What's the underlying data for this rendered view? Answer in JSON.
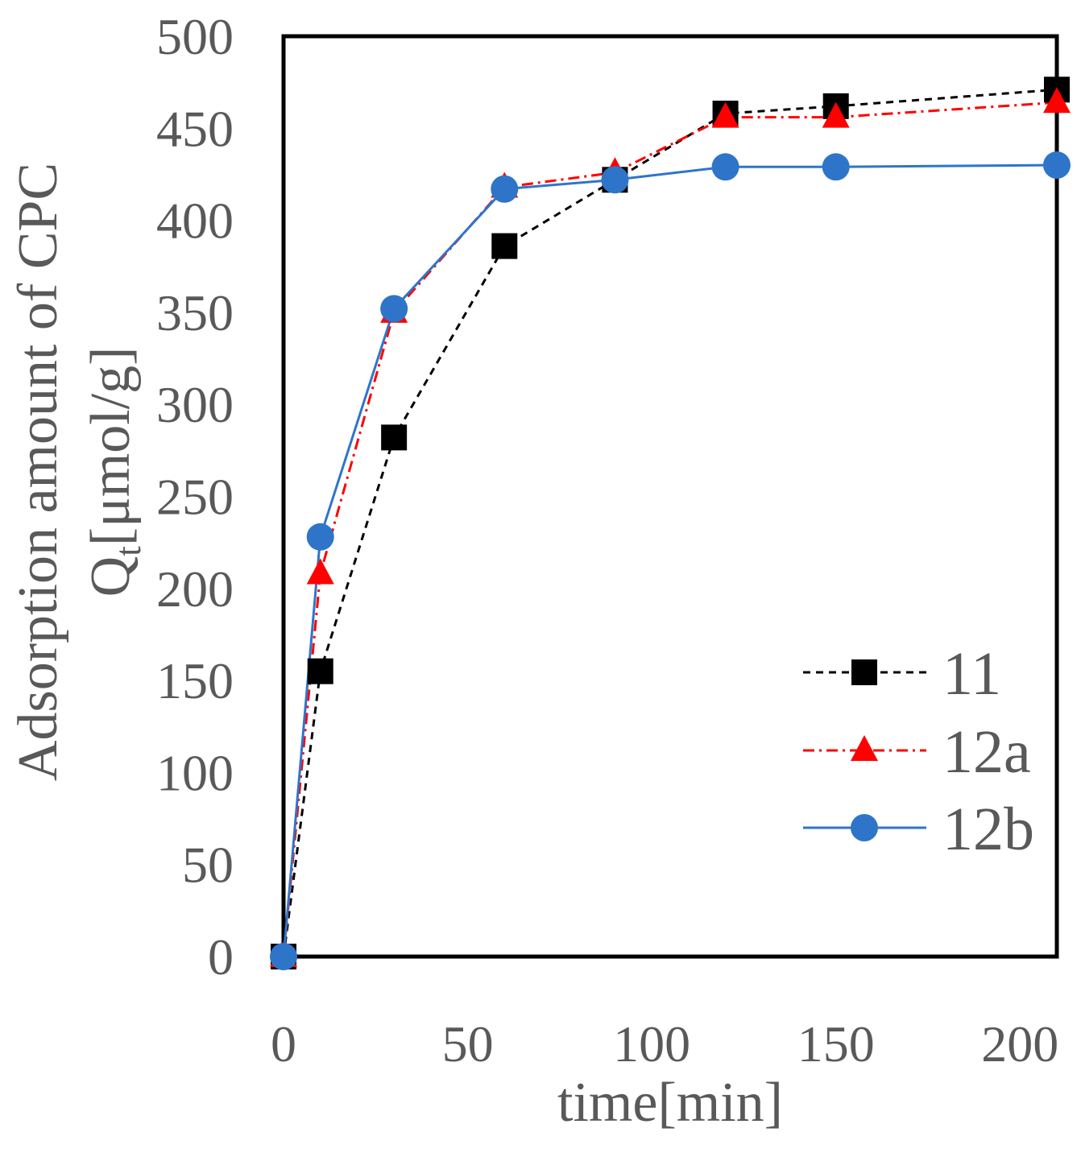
{
  "chart_data": {
    "type": "line",
    "title": "",
    "xlabel": "time[min]",
    "ylabel_line1": "Adsorption amount of CPC",
    "ylabel_q": "Q",
    "ylabel_sub": "t",
    "ylabel_unit": "[μmol/g]",
    "xlim": [
      0,
      210
    ],
    "ylim": [
      0,
      500
    ],
    "xticks": [
      0,
      50,
      100,
      150,
      200
    ],
    "yticks": [
      0,
      50,
      100,
      150,
      200,
      250,
      300,
      350,
      400,
      450,
      500
    ],
    "grid": false,
    "legend_position": "bottom-right",
    "series": [
      {
        "name": "11",
        "marker": "square",
        "line": "dashed",
        "color": "#000000",
        "x": [
          0,
          10,
          30,
          60,
          90,
          120,
          150,
          210
        ],
        "y": [
          0,
          155,
          282,
          386,
          422,
          458,
          462,
          471
        ]
      },
      {
        "name": "12a",
        "marker": "triangle",
        "line": "dashdot",
        "color": "#ff0000",
        "x": [
          0,
          10,
          30,
          60,
          90,
          120,
          150,
          210
        ],
        "y": [
          0,
          208,
          350,
          418,
          426,
          456,
          456,
          464
        ]
      },
      {
        "name": "12b",
        "marker": "circle",
        "line": "solid",
        "color": "#2e75c9",
        "x": [
          0,
          10,
          30,
          60,
          90,
          120,
          150,
          210
        ],
        "y": [
          0,
          228,
          352,
          417,
          422,
          429,
          429,
          430
        ]
      }
    ]
  }
}
